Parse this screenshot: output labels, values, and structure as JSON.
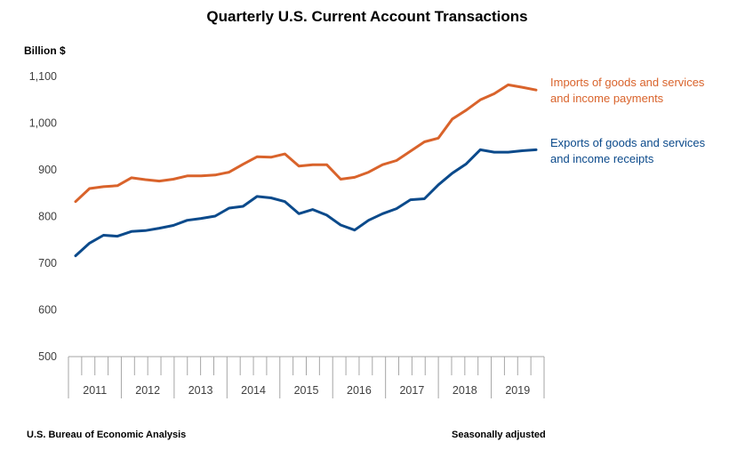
{
  "chart_data": {
    "type": "line",
    "title": "Quarterly U.S. Current Account Transactions",
    "ylabel": "Billion $",
    "ylim": [
      500,
      1100
    ],
    "yticks": [
      500,
      600,
      700,
      800,
      900,
      "1,000",
      "1,100"
    ],
    "years": [
      "2011",
      "2012",
      "2013",
      "2014",
      "2015",
      "2016",
      "2017",
      "2018",
      "2019"
    ],
    "quarters_per_year": 4,
    "series": [
      {
        "name": "Imports of goods and services and income payments",
        "legend_lines": [
          "Imports of goods and services",
          "and income payments"
        ],
        "color": "#D9632B",
        "values": [
          832,
          860,
          864,
          866,
          883,
          879,
          876,
          880,
          887,
          887,
          889,
          895,
          912,
          928,
          927,
          934,
          908,
          911,
          911,
          880,
          884,
          895,
          911,
          920,
          940,
          960,
          968,
          1009,
          1028,
          1050,
          1063,
          1082,
          1077,
          1071
        ]
      },
      {
        "name": "Exports of goods and services and income receipts",
        "legend_lines": [
          "Exports of goods and services",
          "and income receipts"
        ],
        "color": "#0B4A8B",
        "values": [
          716,
          743,
          760,
          758,
          768,
          770,
          775,
          781,
          792,
          796,
          801,
          818,
          822,
          843,
          840,
          832,
          806,
          815,
          803,
          782,
          771,
          792,
          806,
          817,
          836,
          838,
          868,
          893,
          913,
          943,
          938,
          938,
          941,
          943
        ]
      }
    ]
  },
  "footer": {
    "source": "U.S. Bureau of Economic Analysis",
    "note": "Seasonally adjusted"
  }
}
